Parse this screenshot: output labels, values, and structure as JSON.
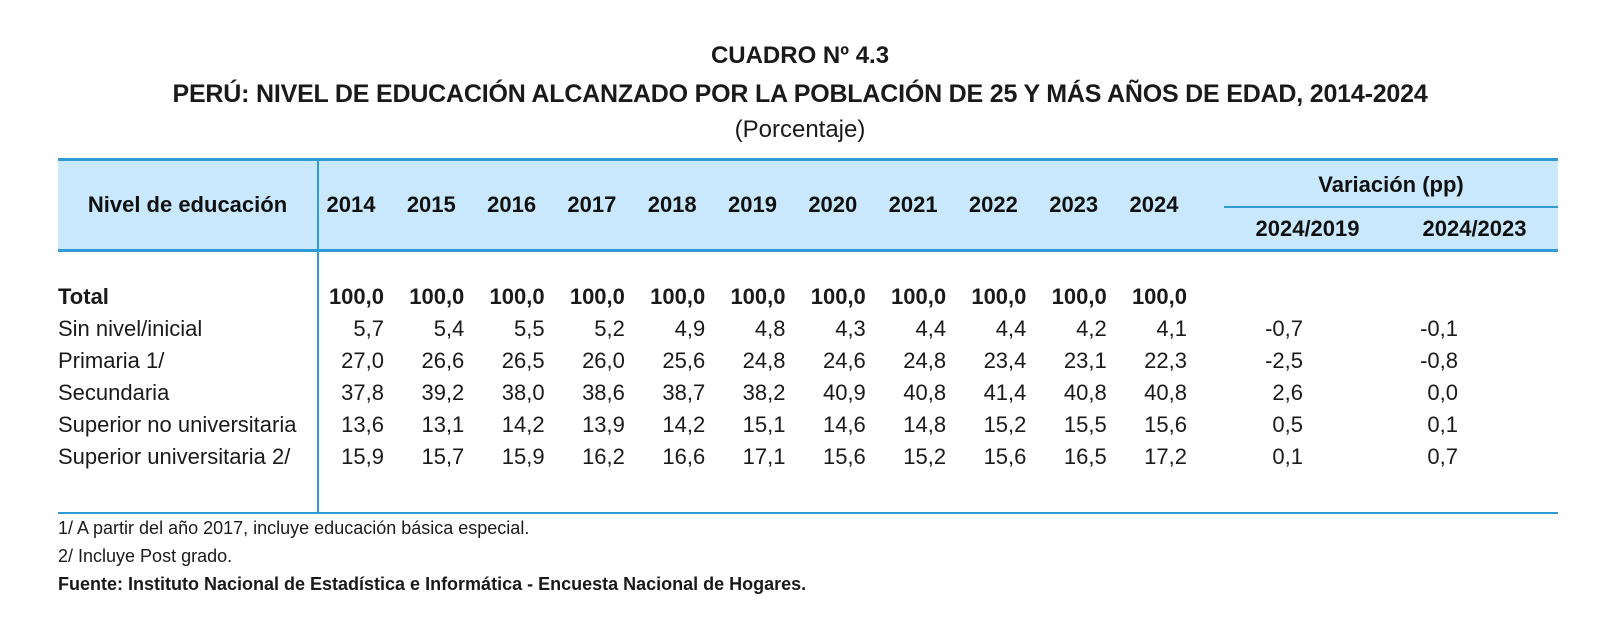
{
  "header": {
    "title": "CUADRO Nº 4.3",
    "subtitle": "PERÚ: NIVEL DE EDUCACIÓN ALCANZADO POR LA POBLACIÓN DE 25 Y MÁS AÑOS DE EDAD, 2014-2024",
    "unit": "(Porcentaje)"
  },
  "table": {
    "level_header": "Nivel de educación",
    "years": [
      "2014",
      "2015",
      "2016",
      "2017",
      "2018",
      "2019",
      "2020",
      "2021",
      "2022",
      "2023",
      "2024"
    ],
    "variation_header": "Variación (pp)",
    "variation_cols": [
      "2024/2019",
      "2024/2023"
    ],
    "rows": [
      {
        "label": "Total",
        "values": [
          "100,0",
          "100,0",
          "100,0",
          "100,0",
          "100,0",
          "100,0",
          "100,0",
          "100,0",
          "100,0",
          "100,0",
          "100,0"
        ],
        "var": [
          "",
          ""
        ]
      },
      {
        "label": "Sin nivel/inicial",
        "values": [
          "5,7",
          "5,4",
          "5,5",
          "5,2",
          "4,9",
          "4,8",
          "4,3",
          "4,4",
          "4,4",
          "4,2",
          "4,1"
        ],
        "var": [
          "-0,7",
          "-0,1"
        ]
      },
      {
        "label": "Primaria 1/",
        "values": [
          "27,0",
          "26,6",
          "26,5",
          "26,0",
          "25,6",
          "24,8",
          "24,6",
          "24,8",
          "23,4",
          "23,1",
          "22,3"
        ],
        "var": [
          "-2,5",
          "-0,8"
        ]
      },
      {
        "label": "Secundaria",
        "values": [
          "37,8",
          "39,2",
          "38,0",
          "38,6",
          "38,7",
          "38,2",
          "40,9",
          "40,8",
          "41,4",
          "40,8",
          "40,8"
        ],
        "var": [
          "2,6",
          "0,0"
        ]
      },
      {
        "label": "Superior no universitaria",
        "values": [
          "13,6",
          "13,1",
          "14,2",
          "13,9",
          "14,2",
          "15,1",
          "14,6",
          "14,8",
          "15,2",
          "15,5",
          "15,6"
        ],
        "var": [
          "0,5",
          "0,1"
        ]
      },
      {
        "label": "Superior universitaria 2/",
        "values": [
          "15,9",
          "15,7",
          "15,9",
          "16,2",
          "16,6",
          "17,1",
          "15,6",
          "15,2",
          "15,6",
          "16,5",
          "17,2"
        ],
        "var": [
          "0,1",
          "0,7"
        ]
      }
    ]
  },
  "notes": {
    "note1": "1/ A partir del año 2017, incluye educación básica especial.",
    "note2": "2/ Incluye Post grado.",
    "source": "Fuente: Instituto Nacional de Estadística e Informática - Encuesta Nacional  de Hogares."
  }
}
